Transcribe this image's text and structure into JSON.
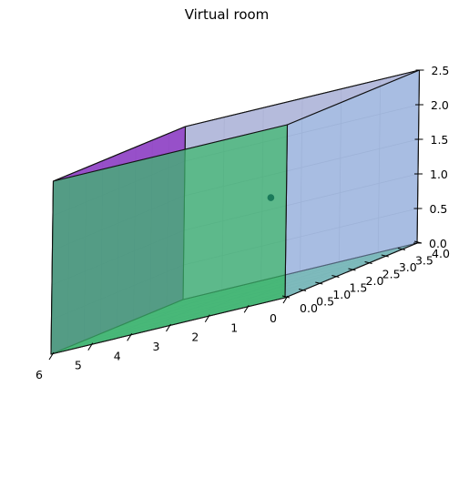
{
  "chart_data": {
    "type": "3d-surface",
    "title": "Virtual room",
    "xlabel": "",
    "ylabel": "",
    "zlabel": "",
    "xlim": [
      0,
      6
    ],
    "ylim": [
      0,
      4
    ],
    "zlim": [
      0,
      2.5
    ],
    "x_ticks": [
      "0",
      "1",
      "2",
      "3",
      "4",
      "5",
      "6"
    ],
    "y_ticks": [
      "0.0",
      "0.5",
      "1.0",
      "1.5",
      "2.0",
      "2.5",
      "3.0",
      "3.5",
      "4.0"
    ],
    "z_ticks": [
      "0.0",
      "0.5",
      "1.0",
      "1.5",
      "2.0",
      "2.5"
    ],
    "room": {
      "length": 6,
      "width": 4,
      "height": 2.5
    },
    "faces": [
      {
        "name": "floor",
        "plane": "z",
        "at": 0,
        "color": "#5dbb8f",
        "opacity": 0.9
      },
      {
        "name": "ceiling",
        "plane": "z",
        "at": 2.5,
        "color": "#b8b8c8",
        "opacity": 0.55
      },
      {
        "name": "back-wall",
        "plane": "y",
        "at": 4,
        "color": "#a3addf",
        "opacity": 0.6
      },
      {
        "name": "left-wall",
        "plane": "x",
        "at": 0,
        "color": "#8fb3e0",
        "opacity": 0.5
      },
      {
        "name": "right-wall",
        "plane": "x",
        "at": 6,
        "color": "#8b35c6",
        "opacity": 0.82
      },
      {
        "name": "front-wall",
        "plane": "y",
        "at": 0,
        "color": "#3cb46e",
        "opacity": 0.75
      }
    ],
    "points": [
      {
        "name": "source",
        "x": 0.4,
        "y": 0.0,
        "z": 1.5,
        "color": "#1a7a5a"
      }
    ]
  }
}
